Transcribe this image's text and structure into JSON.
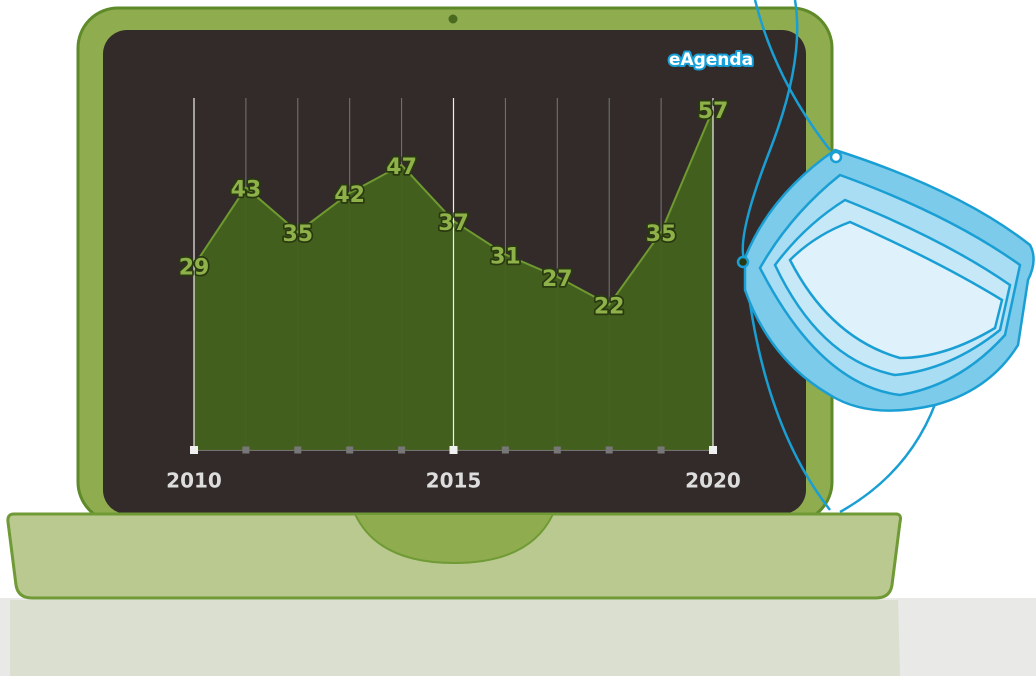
{
  "chart_data": {
    "type": "area",
    "brand": "eAgenda",
    "x": [
      2010,
      2011,
      2012,
      2013,
      2014,
      2015,
      2016,
      2017,
      2018,
      2019,
      2020
    ],
    "values": [
      29,
      43,
      35,
      42,
      47,
      37,
      31,
      27,
      22,
      35,
      57
    ],
    "color": "#44621e",
    "line_color": "#6e9a30",
    "xlim": [
      2010,
      2020
    ],
    "xticks": [
      2010,
      2015,
      2020
    ],
    "ylim": [
      -4,
      59
    ]
  }
}
